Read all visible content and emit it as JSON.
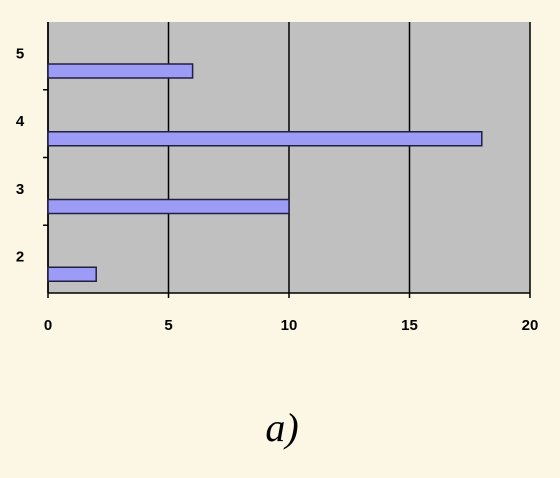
{
  "chart_data": {
    "type": "barh",
    "caption": "a)",
    "categories": [
      "2",
      "3",
      "4",
      "5"
    ],
    "values": [
      2,
      10,
      18,
      6
    ],
    "color": "#9c9cf6",
    "xlim": [
      0,
      20
    ],
    "xticks": [
      0,
      5,
      10,
      15,
      20
    ],
    "grid": true
  }
}
